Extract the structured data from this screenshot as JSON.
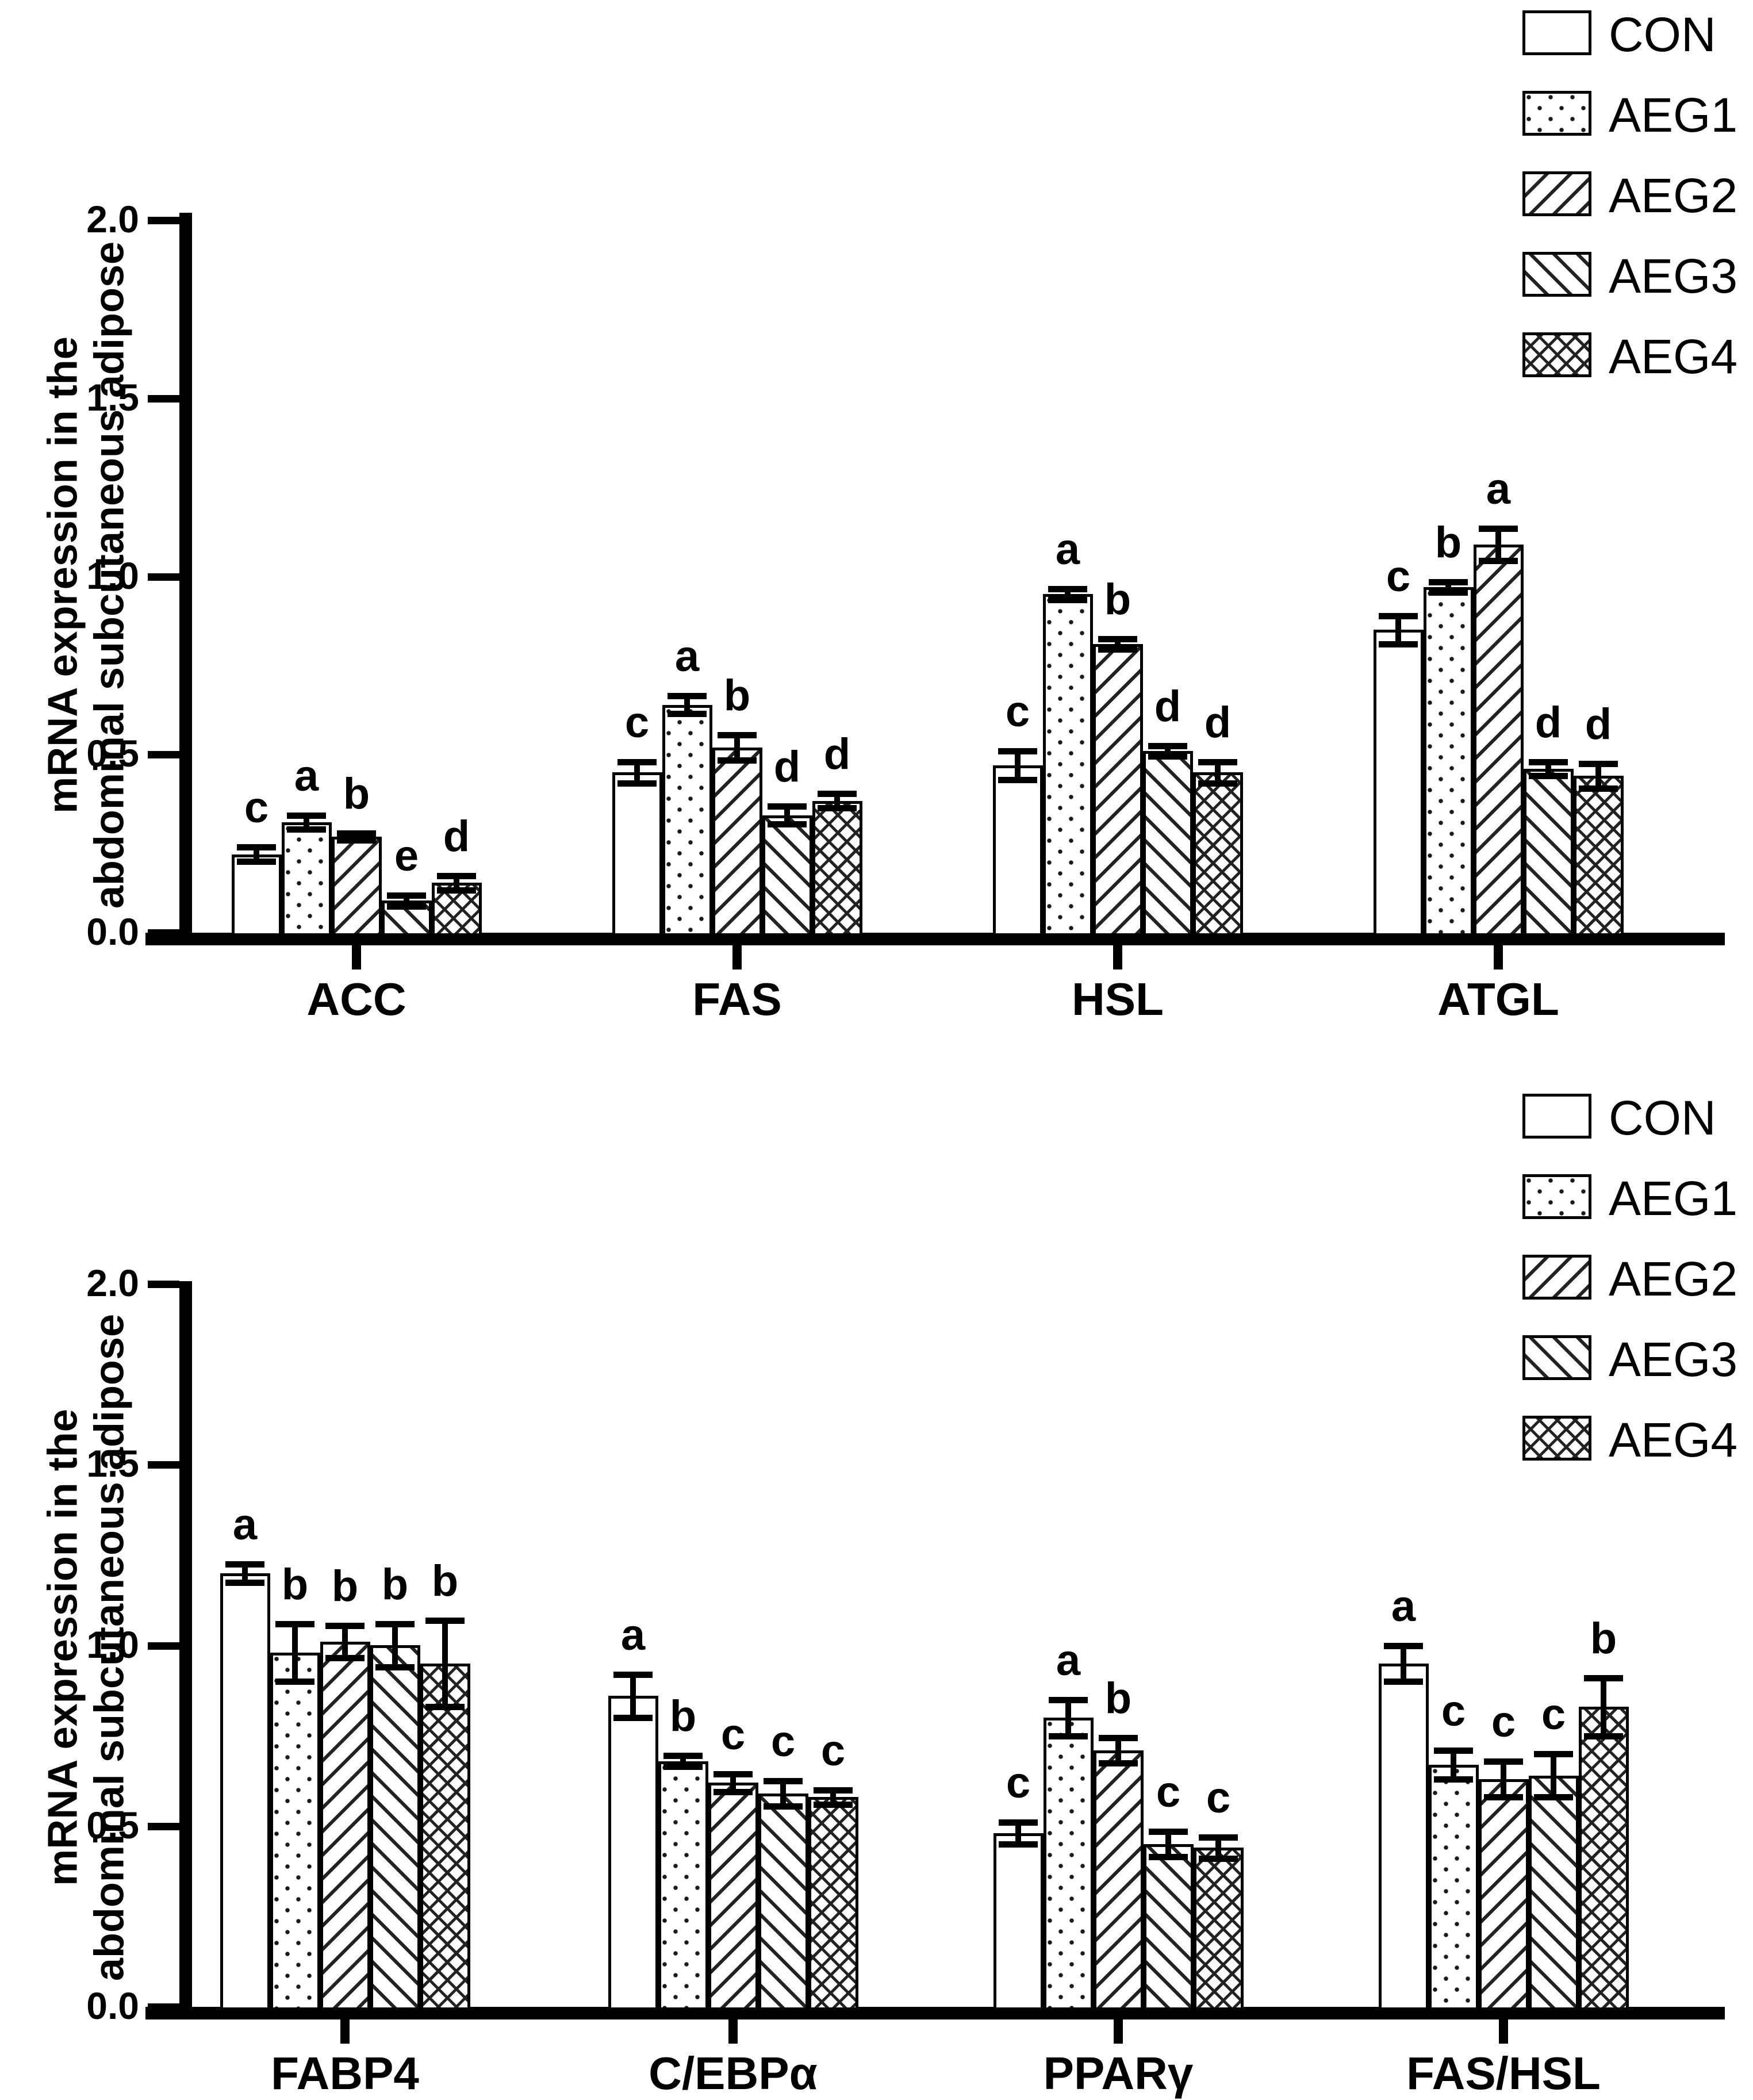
{
  "figure": {
    "y_axis_label_line1": "mRNA expression in the",
    "y_axis_label_line2": "abdominal subcutaneous adipose"
  },
  "legend": {
    "entries": [
      {
        "label": "CON",
        "pattern": "solid-white"
      },
      {
        "label": "AEG1",
        "pattern": "dots"
      },
      {
        "label": "AEG2",
        "pattern": "diag-up"
      },
      {
        "label": "AEG3",
        "pattern": "diag-down"
      },
      {
        "label": "AEG4",
        "pattern": "crosshatch"
      }
    ]
  },
  "colors": {
    "ink": "#000000",
    "background": "#ffffff"
  },
  "chart_data": [
    {
      "type": "bar",
      "title": "",
      "xlabel": "",
      "ylabel": "mRNA expression in the abdominal subcutaneous adipose",
      "ylim": [
        0.0,
        2.0
      ],
      "yticks": [
        "2.0",
        "1.5",
        "1.0",
        "0.5",
        "0.0"
      ],
      "ytick_values": [
        2.0,
        1.5,
        1.0,
        0.5,
        0.0
      ],
      "grid": "off",
      "legend_position": "top-right",
      "categories": [
        "ACC",
        "FAS",
        "HSL",
        "ATGL"
      ],
      "series": [
        {
          "name": "CON",
          "pattern": "solid-white",
          "values": [
            0.22,
            0.45,
            0.47,
            0.85
          ],
          "errors": [
            0.02,
            0.03,
            0.04,
            0.04
          ],
          "letters": [
            "c",
            "c",
            "c",
            "c"
          ]
        },
        {
          "name": "AEG1",
          "pattern": "dots",
          "values": [
            0.31,
            0.64,
            0.95,
            0.97
          ],
          "errors": [
            0.02,
            0.025,
            0.015,
            0.015
          ],
          "letters": [
            "a",
            "a",
            "a",
            "b"
          ]
        },
        {
          "name": "AEG2",
          "pattern": "diag-up",
          "values": [
            0.27,
            0.52,
            0.81,
            1.09
          ],
          "errors": [
            0.01,
            0.035,
            0.015,
            0.045
          ],
          "letters": [
            "b",
            "b",
            "b",
            "a"
          ]
        },
        {
          "name": "AEG3",
          "pattern": "diag-down",
          "values": [
            0.09,
            0.33,
            0.51,
            0.46
          ],
          "errors": [
            0.015,
            0.025,
            0.015,
            0.02
          ],
          "letters": [
            "e",
            "d",
            "d",
            "d"
          ]
        },
        {
          "name": "AEG4",
          "pattern": "crosshatch",
          "values": [
            0.14,
            0.37,
            0.45,
            0.44
          ],
          "errors": [
            0.02,
            0.02,
            0.03,
            0.035
          ],
          "letters": [
            "d",
            "d",
            "d",
            "d"
          ]
        }
      ]
    },
    {
      "type": "bar",
      "title": "",
      "xlabel": "",
      "ylabel": "mRNA expression in the abdominal subcutaneous adipose",
      "ylim": [
        0.0,
        2.0
      ],
      "yticks": [
        "2.0",
        "1.5",
        "1.0",
        "0.5",
        "0.0"
      ],
      "ytick_values": [
        2.0,
        1.5,
        1.0,
        0.5,
        0.0
      ],
      "grid": "off",
      "legend_position": "top-right",
      "categories": [
        "FABP4",
        "C/EBPα",
        "PPARγ",
        "FAS/HSL"
      ],
      "series": [
        {
          "name": "CON",
          "pattern": "solid-white",
          "values": [
            1.2,
            0.86,
            0.48,
            0.95
          ],
          "errors": [
            0.025,
            0.06,
            0.03,
            0.05
          ],
          "letters": [
            "a",
            "a",
            "c",
            "a"
          ]
        },
        {
          "name": "AEG1",
          "pattern": "dots",
          "values": [
            0.98,
            0.68,
            0.8,
            0.67
          ],
          "errors": [
            0.08,
            0.015,
            0.05,
            0.04
          ],
          "letters": [
            "b",
            "b",
            "a",
            "c"
          ]
        },
        {
          "name": "AEG2",
          "pattern": "diag-up",
          "values": [
            1.01,
            0.62,
            0.71,
            0.63
          ],
          "errors": [
            0.045,
            0.025,
            0.035,
            0.05
          ],
          "letters": [
            "b",
            "c",
            "b",
            "c"
          ]
        },
        {
          "name": "AEG3",
          "pattern": "diag-down",
          "values": [
            1.0,
            0.59,
            0.45,
            0.64
          ],
          "errors": [
            0.06,
            0.035,
            0.035,
            0.06
          ],
          "letters": [
            "b",
            "c",
            "c",
            "c"
          ]
        },
        {
          "name": "AEG4",
          "pattern": "crosshatch",
          "values": [
            0.95,
            0.58,
            0.44,
            0.83
          ],
          "errors": [
            0.12,
            0.02,
            0.03,
            0.08
          ],
          "letters": [
            "b",
            "c",
            "c",
            "b"
          ]
        }
      ]
    }
  ]
}
